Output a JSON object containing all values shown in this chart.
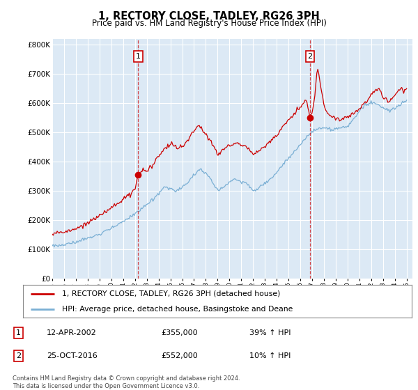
{
  "title": "1, RECTORY CLOSE, TADLEY, RG26 3PH",
  "subtitle": "Price paid vs. HM Land Registry's House Price Index (HPI)",
  "red_label": "1, RECTORY CLOSE, TADLEY, RG26 3PH (detached house)",
  "blue_label": "HPI: Average price, detached house, Basingstoke and Deane",
  "sale1_date": 2002.28,
  "sale1_price": 355000,
  "sale1_text": "12-APR-2002",
  "sale1_pct": "39%",
  "sale2_date": 2016.81,
  "sale2_price": 552000,
  "sale2_text": "25-OCT-2016",
  "sale2_pct": "10%",
  "ylim": [
    0,
    820000
  ],
  "xlim": [
    1995.0,
    2025.5
  ],
  "yticks": [
    0,
    100000,
    200000,
    300000,
    400000,
    500000,
    600000,
    700000,
    800000
  ],
  "ytick_labels": [
    "£0",
    "£100K",
    "£200K",
    "£300K",
    "£400K",
    "£500K",
    "£600K",
    "£700K",
    "£800K"
  ],
  "plot_bg": "#dce9f5",
  "grid_color": "#ffffff",
  "red_color": "#cc0000",
  "blue_color": "#7aafd4",
  "footnote": "Contains HM Land Registry data © Crown copyright and database right 2024.\nThis data is licensed under the Open Government Licence v3.0.",
  "hpi_keypoints": [
    [
      1995.0,
      112000
    ],
    [
      1996.0,
      118000
    ],
    [
      1997.0,
      128000
    ],
    [
      1998.0,
      142000
    ],
    [
      1999.0,
      158000
    ],
    [
      2000.0,
      178000
    ],
    [
      2001.0,
      200000
    ],
    [
      2002.0,
      225000
    ],
    [
      2003.0,
      260000
    ],
    [
      2004.0,
      295000
    ],
    [
      2004.5,
      320000
    ],
    [
      2005.0,
      310000
    ],
    [
      2005.5,
      305000
    ],
    [
      2006.0,
      318000
    ],
    [
      2006.5,
      335000
    ],
    [
      2007.0,
      360000
    ],
    [
      2007.5,
      380000
    ],
    [
      2008.0,
      365000
    ],
    [
      2008.5,
      340000
    ],
    [
      2009.0,
      305000
    ],
    [
      2009.5,
      318000
    ],
    [
      2010.0,
      335000
    ],
    [
      2010.5,
      345000
    ],
    [
      2011.0,
      340000
    ],
    [
      2011.5,
      330000
    ],
    [
      2012.0,
      305000
    ],
    [
      2012.5,
      315000
    ],
    [
      2013.0,
      330000
    ],
    [
      2013.5,
      345000
    ],
    [
      2014.0,
      365000
    ],
    [
      2014.5,
      390000
    ],
    [
      2015.0,
      410000
    ],
    [
      2015.5,
      435000
    ],
    [
      2016.0,
      455000
    ],
    [
      2016.5,
      480000
    ],
    [
      2017.0,
      500000
    ],
    [
      2017.5,
      510000
    ],
    [
      2018.0,
      510000
    ],
    [
      2018.5,
      508000
    ],
    [
      2019.0,
      505000
    ],
    [
      2019.5,
      510000
    ],
    [
      2020.0,
      515000
    ],
    [
      2020.5,
      540000
    ],
    [
      2021.0,
      565000
    ],
    [
      2021.5,
      590000
    ],
    [
      2022.0,
      600000
    ],
    [
      2022.5,
      595000
    ],
    [
      2023.0,
      580000
    ],
    [
      2023.5,
      575000
    ],
    [
      2024.0,
      580000
    ],
    [
      2024.5,
      595000
    ],
    [
      2025.0,
      608000
    ]
  ],
  "red_keypoints": [
    [
      1995.0,
      152000
    ],
    [
      1996.0,
      160000
    ],
    [
      1997.0,
      173000
    ],
    [
      1998.0,
      192000
    ],
    [
      1999.0,
      215000
    ],
    [
      2000.0,
      240000
    ],
    [
      2001.0,
      268000
    ],
    [
      2001.5,
      285000
    ],
    [
      2002.0,
      300000
    ],
    [
      2002.28,
      355000
    ],
    [
      2002.5,
      358000
    ],
    [
      2003.0,
      370000
    ],
    [
      2003.5,
      385000
    ],
    [
      2004.0,
      415000
    ],
    [
      2004.5,
      440000
    ],
    [
      2005.0,
      460000
    ],
    [
      2005.5,
      445000
    ],
    [
      2006.0,
      455000
    ],
    [
      2006.5,
      472000
    ],
    [
      2007.0,
      500000
    ],
    [
      2007.3,
      520000
    ],
    [
      2007.6,
      510000
    ],
    [
      2008.0,
      490000
    ],
    [
      2008.5,
      460000
    ],
    [
      2009.0,
      420000
    ],
    [
      2009.5,
      438000
    ],
    [
      2010.0,
      455000
    ],
    [
      2010.5,
      462000
    ],
    [
      2011.0,
      458000
    ],
    [
      2011.5,
      445000
    ],
    [
      2012.0,
      425000
    ],
    [
      2012.5,
      435000
    ],
    [
      2013.0,
      450000
    ],
    [
      2013.5,
      468000
    ],
    [
      2014.0,
      490000
    ],
    [
      2014.5,
      518000
    ],
    [
      2015.0,
      542000
    ],
    [
      2015.5,
      568000
    ],
    [
      2016.0,
      588000
    ],
    [
      2016.5,
      610000
    ],
    [
      2016.81,
      552000
    ],
    [
      2016.85,
      545000
    ],
    [
      2017.0,
      560000
    ],
    [
      2017.2,
      620000
    ],
    [
      2017.4,
      700000
    ],
    [
      2017.5,
      720000
    ],
    [
      2017.6,
      690000
    ],
    [
      2017.8,
      640000
    ],
    [
      2018.0,
      590000
    ],
    [
      2018.2,
      570000
    ],
    [
      2018.5,
      555000
    ],
    [
      2019.0,
      548000
    ],
    [
      2019.5,
      550000
    ],
    [
      2020.0,
      555000
    ],
    [
      2020.5,
      565000
    ],
    [
      2021.0,
      580000
    ],
    [
      2021.5,
      600000
    ],
    [
      2022.0,
      625000
    ],
    [
      2022.3,
      645000
    ],
    [
      2022.6,
      655000
    ],
    [
      2022.8,
      640000
    ],
    [
      2023.0,
      620000
    ],
    [
      2023.3,
      610000
    ],
    [
      2023.5,
      605000
    ],
    [
      2023.8,
      618000
    ],
    [
      2024.0,
      628000
    ],
    [
      2024.3,
      645000
    ],
    [
      2024.5,
      650000
    ],
    [
      2024.8,
      640000
    ],
    [
      2025.0,
      650000
    ]
  ]
}
